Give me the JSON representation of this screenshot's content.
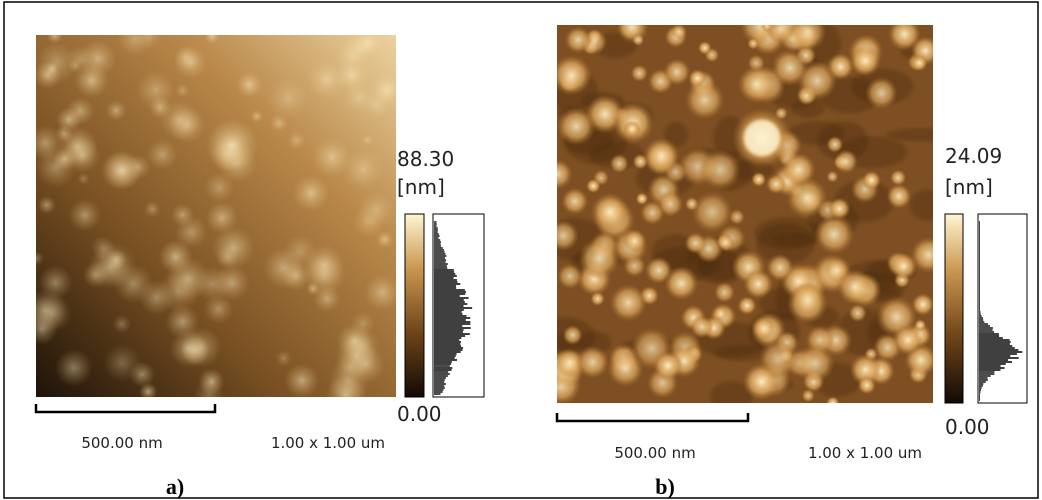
{
  "panels": [
    {
      "label": "a)",
      "max": "88.30",
      "unit": "[nm]",
      "min": "0.00",
      "scale_bar": "500.00 nm",
      "scan_size": "1.00 x 1.00 um"
    },
    {
      "label": "b)",
      "max": "24.09",
      "unit": "[nm]",
      "min": "0.00",
      "scale_bar": "500.00 nm",
      "scan_size": "1.00 x 1.00 um"
    }
  ]
}
